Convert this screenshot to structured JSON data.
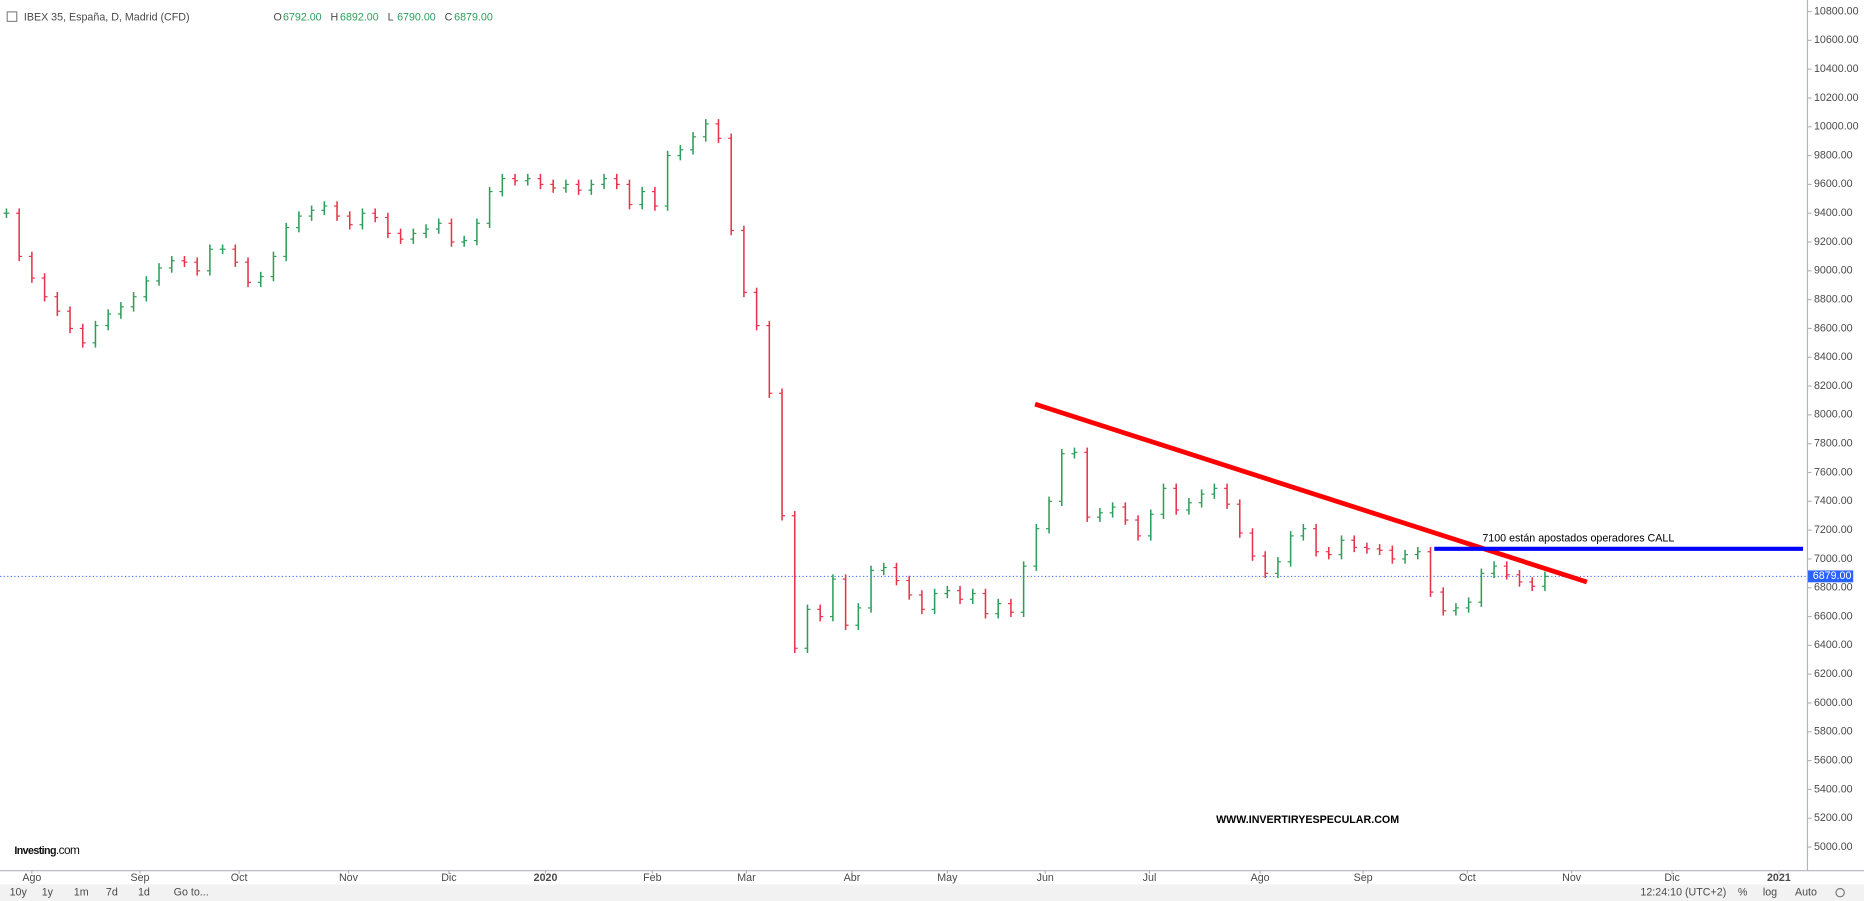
{
  "chart_data": {
    "type": "ohlc",
    "title": "IBEX 35, España, D, Madrid (CFD)",
    "ohlc": [
      {
        "label": "O",
        "value": "6792.00"
      },
      {
        "label": "H",
        "value": "6892.00"
      },
      {
        "label": "L",
        "value": "6790.00"
      },
      {
        "label": "C",
        "value": "6879.00"
      }
    ],
    "values": [
      9400,
      9100,
      8950,
      8820,
      8720,
      8600,
      8500,
      8620,
      8700,
      8750,
      8820,
      8930,
      9020,
      9070,
      9060,
      9000,
      9150,
      9150,
      9060,
      8920,
      8960,
      9100,
      9300,
      9380,
      9420,
      9450,
      9380,
      9320,
      9400,
      9370,
      9260,
      9220,
      9260,
      9290,
      9330,
      9200,
      9210,
      9330,
      9550,
      9640,
      9625,
      9640,
      9600,
      9575,
      9600,
      9560,
      9600,
      9640,
      9600,
      9460,
      9550,
      9450,
      9800,
      9840,
      9930,
      10020,
      9920,
      9280,
      8850,
      8620,
      8150,
      7300,
      6380,
      6650,
      6600,
      6860,
      6540,
      6660,
      6920,
      6940,
      6850,
      6750,
      6650,
      6760,
      6780,
      6720,
      6760,
      6620,
      6690,
      6630,
      6950,
      7210,
      7400,
      7730,
      7740,
      7290,
      7320,
      7360,
      7270,
      7160,
      7310,
      7490,
      7340,
      7390,
      7450,
      7490,
      7380,
      7180,
      7020,
      6900,
      6980,
      7160,
      7210,
      7050,
      7030,
      7130,
      7080,
      7070,
      7060,
      7000,
      7030,
      7050,
      6770,
      6640,
      6660,
      6700,
      6900,
      6950,
      6890,
      6840,
      6810,
      6879
    ],
    "up_color": "#2e9e5b",
    "down_color": "#e8334a",
    "xlim": [
      -0.5,
      141.6
    ],
    "xticks": [
      {
        "value": 2.0,
        "label": "Ago"
      },
      {
        "value": 10.5,
        "label": "Sep"
      },
      {
        "value": 18.3,
        "label": "Oct"
      },
      {
        "value": 26.9,
        "label": "Nov"
      },
      {
        "value": 34.8,
        "label": "Dic"
      },
      {
        "value": 42.4,
        "label": "2020"
      },
      {
        "value": 50.8,
        "label": "Feb"
      },
      {
        "value": 58.2,
        "label": "Mar"
      },
      {
        "value": 66.5,
        "label": "Abr"
      },
      {
        "value": 74.0,
        "label": "May"
      },
      {
        "value": 81.7,
        "label": "Jun"
      },
      {
        "value": 89.9,
        "label": "Jul"
      },
      {
        "value": 98.6,
        "label": "Ago"
      },
      {
        "value": 106.7,
        "label": "Sep"
      },
      {
        "value": 114.9,
        "label": "Oct"
      },
      {
        "value": 123.1,
        "label": "Nov"
      },
      {
        "value": 131.0,
        "label": "Dic"
      },
      {
        "value": 139.4,
        "label": "2021"
      }
    ],
    "ylim": [
      4840,
      10880
    ],
    "yticks": [
      {
        "value": 10800,
        "label": "10800.00"
      },
      {
        "value": 10600,
        "label": "10600.00"
      },
      {
        "value": 10400,
        "label": "10400.00"
      },
      {
        "value": 10200,
        "label": "10200.00"
      },
      {
        "value": 10000,
        "label": "10000.00"
      },
      {
        "value": 9800,
        "label": "9800.00"
      },
      {
        "value": 9600,
        "label": "9600.00"
      },
      {
        "value": 9400,
        "label": "9400.00"
      },
      {
        "value": 9200,
        "label": "9200.00"
      },
      {
        "value": 9000,
        "label": "9000.00"
      },
      {
        "value": 8800,
        "label": "8800.00"
      },
      {
        "value": 8600,
        "label": "8600.00"
      },
      {
        "value": 8400,
        "label": "8400.00"
      },
      {
        "value": 8200,
        "label": "8200.00"
      },
      {
        "value": 8000,
        "label": "8000.00"
      },
      {
        "value": 7800,
        "label": "7800.00"
      },
      {
        "value": 7600,
        "label": "7600.00"
      },
      {
        "value": 7400,
        "label": "7400.00"
      },
      {
        "value": 7200,
        "label": "7200.00"
      },
      {
        "value": 7000,
        "label": "7000.00"
      },
      {
        "value": 6800,
        "label": "6800.00"
      },
      {
        "value": 6600,
        "label": "6600.00"
      },
      {
        "value": 6400,
        "label": "6400.00"
      },
      {
        "value": 6200,
        "label": "6200.00"
      },
      {
        "value": 6000,
        "label": "6000.00"
      },
      {
        "value": 5800,
        "label": "5800.00"
      },
      {
        "value": 5600,
        "label": "5600.00"
      },
      {
        "value": 5400,
        "label": "5400.00"
      },
      {
        "value": 5200,
        "label": "5200.00"
      },
      {
        "value": 5000,
        "label": "5000.00"
      }
    ],
    "last_price": {
      "value": 6879,
      "label": "6879.00",
      "color": "#2962ff"
    },
    "trendline": {
      "color": "#ff0000",
      "x": [
        80.9,
        124.3
      ],
      "y": [
        8075,
        6840
      ]
    },
    "hline": {
      "color": "#0000ff",
      "x": [
        112.3,
        141.3
      ],
      "y": 7070
    },
    "annotations": [
      "7100 están apostados operadores CALL",
      "WWW.INVERTIRYESPECULAR.COM"
    ],
    "logo": [
      "Investing",
      ".com"
    ],
    "toolbar": {
      "ranges": [
        "10y",
        "1y",
        "1m",
        "7d",
        "1d"
      ],
      "goto": "Go to...",
      "time": "12:24:10 (UTC+2)",
      "options": [
        "%",
        "log",
        "Auto"
      ]
    }
  }
}
